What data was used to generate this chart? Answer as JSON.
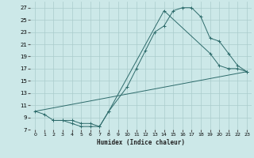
{
  "title": "",
  "xlabel": "Humidex (Indice chaleur)",
  "bg_color": "#cce8e8",
  "grid_color": "#aacccc",
  "line_color": "#2d6b6b",
  "xlim": [
    -0.5,
    23.5
  ],
  "ylim": [
    7,
    28
  ],
  "yticks": [
    7,
    9,
    11,
    13,
    15,
    17,
    19,
    21,
    23,
    25,
    27
  ],
  "xticks": [
    0,
    1,
    2,
    3,
    4,
    5,
    6,
    7,
    8,
    9,
    10,
    11,
    12,
    13,
    14,
    15,
    16,
    17,
    18,
    19,
    20,
    21,
    22,
    23
  ],
  "line1_x": [
    0,
    1,
    2,
    3,
    4,
    5,
    6,
    7,
    8,
    10,
    11,
    12,
    13,
    14,
    15,
    16,
    17,
    18,
    19,
    20,
    21,
    22,
    23
  ],
  "line1_y": [
    10,
    9.5,
    8.5,
    8.5,
    8,
    7.5,
    7.5,
    7.5,
    10,
    14,
    17,
    20,
    23,
    24,
    26.5,
    27,
    27,
    25.5,
    22,
    21.5,
    19.5,
    17.5,
    16.5
  ],
  "line2_x": [
    2,
    3,
    4,
    5,
    6,
    7,
    8,
    14,
    19,
    20,
    21,
    22,
    23
  ],
  "line2_y": [
    8.5,
    8.5,
    8.5,
    8,
    8,
    7.5,
    10,
    26.5,
    19.5,
    17.5,
    17,
    17,
    16.5
  ],
  "line3_x": [
    0,
    23
  ],
  "line3_y": [
    10,
    16.5
  ]
}
